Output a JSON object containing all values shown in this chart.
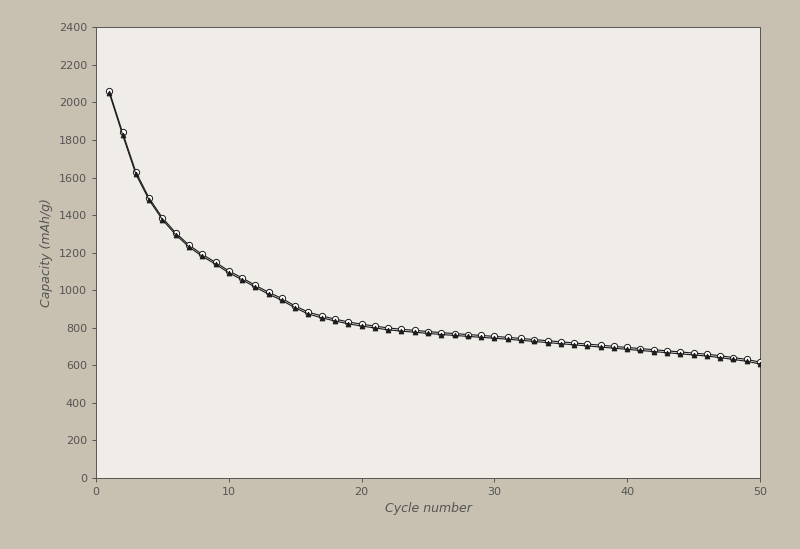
{
  "title": "",
  "xlabel": "Cycle number",
  "ylabel": "Capacity (mAh/g)",
  "xlim": [
    0,
    50
  ],
  "ylim": [
    0,
    2400
  ],
  "xticks": [
    0,
    10,
    20,
    30,
    40,
    50
  ],
  "yticks": [
    0,
    200,
    400,
    600,
    800,
    1000,
    1200,
    1400,
    1600,
    1800,
    2000,
    2200,
    2400
  ],
  "background_color": "#c8c0b0",
  "plot_bg_color": "#f0ede8",
  "line_color": "#1a1a1a",
  "marker1": "o",
  "marker2": "^",
  "marker_size1": 4.5,
  "marker_size2": 3.5,
  "x_data": [
    1,
    2,
    3,
    4,
    5,
    6,
    7,
    8,
    9,
    10,
    11,
    12,
    13,
    14,
    15,
    16,
    17,
    18,
    19,
    20,
    21,
    22,
    23,
    24,
    25,
    26,
    27,
    28,
    29,
    30,
    31,
    32,
    33,
    34,
    35,
    36,
    37,
    38,
    39,
    40,
    41,
    42,
    43,
    44,
    45,
    46,
    47,
    48,
    49,
    50
  ],
  "y_data1": [
    2060,
    1840,
    1630,
    1490,
    1385,
    1305,
    1240,
    1190,
    1148,
    1102,
    1065,
    1025,
    988,
    955,
    915,
    882,
    862,
    845,
    830,
    818,
    808,
    798,
    791,
    785,
    779,
    773,
    768,
    763,
    758,
    753,
    748,
    742,
    736,
    730,
    724,
    718,
    712,
    706,
    700,
    694,
    688,
    682,
    676,
    670,
    664,
    658,
    650,
    640,
    630,
    616
  ],
  "y_data2": [
    2050,
    1828,
    1618,
    1480,
    1375,
    1295,
    1230,
    1180,
    1138,
    1092,
    1055,
    1015,
    978,
    945,
    905,
    872,
    852,
    835,
    820,
    808,
    798,
    788,
    781,
    775,
    769,
    763,
    758,
    753,
    748,
    743,
    738,
    732,
    726,
    720,
    714,
    708,
    702,
    696,
    690,
    684,
    678,
    672,
    666,
    660,
    654,
    648,
    640,
    630,
    620,
    606
  ],
  "xlabel_fontsize": 9,
  "ylabel_fontsize": 9,
  "tick_fontsize": 8,
  "linewidth": 0.8,
  "spine_color": "#555555",
  "spine_linewidth": 0.7
}
